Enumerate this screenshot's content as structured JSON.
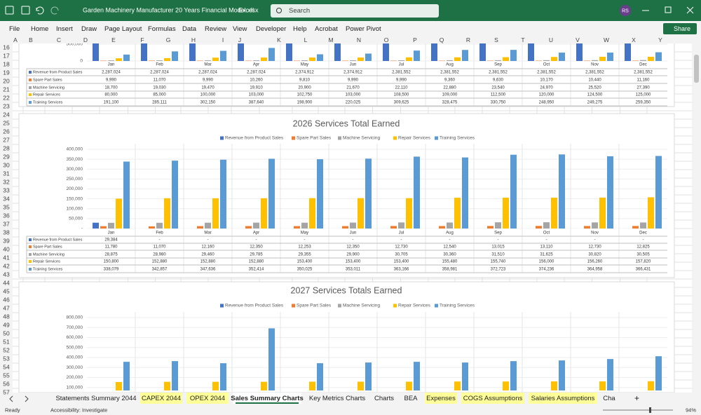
{
  "window": {
    "file_name": "Garden Machinery Manufacturer 20 Years Financial Model.xlsx",
    "app_name": "Excel",
    "search": "Search",
    "user_initials": "RS"
  },
  "ribbon_tabs": [
    "File",
    "Home",
    "Insert",
    "Draw",
    "Page Layout",
    "Formulas",
    "Data",
    "Review",
    "View",
    "Developer",
    "Help",
    "Acrobat",
    "Power Pivot"
  ],
  "share": "Share",
  "columns": [
    "A",
    "B",
    "C",
    "D",
    "E",
    "F",
    "G",
    "H",
    "I",
    "J",
    "K",
    "L",
    "M",
    "N",
    "O",
    "P",
    "Q",
    "R",
    "S",
    "T",
    "U",
    "V",
    "W",
    "X",
    "Y"
  ],
  "rows": [
    16,
    17,
    18,
    19,
    20,
    21,
    22,
    23,
    24,
    25,
    26,
    27,
    28,
    29,
    30,
    31,
    32,
    33,
    34,
    35,
    36,
    37,
    38,
    39,
    40,
    41,
    42,
    43,
    44,
    45,
    46,
    47,
    48,
    49,
    50,
    51,
    52,
    53,
    54,
    55,
    56,
    57
  ],
  "sheet_tabs": [
    {
      "label": "Statements Summary 2044",
      "highlight": false,
      "active": false
    },
    {
      "label": "CAPEX 2044",
      "highlight": true,
      "active": false
    },
    {
      "label": "OPEX 2044",
      "highlight": true,
      "active": false
    },
    {
      "label": "Sales Summary Charts",
      "highlight": false,
      "active": true
    },
    {
      "label": "Key Metrics Charts",
      "highlight": false,
      "active": false
    },
    {
      "label": "Charts",
      "highlight": false,
      "active": false
    },
    {
      "label": "BEA",
      "highlight": false,
      "active": false
    },
    {
      "label": "Expenses",
      "highlight": true,
      "active": false
    },
    {
      "label": "COGS Assumptions",
      "highlight": true,
      "active": false
    },
    {
      "label": "Salaries Assumptions",
      "highlight": true,
      "active": false
    },
    {
      "label": "Cha",
      "highlight": false,
      "active": false
    }
  ],
  "status": {
    "ready": "Ready",
    "accessibility": "Accessibility: Investigate",
    "zoom": "94%"
  },
  "chart_data": [
    {
      "type": "bar",
      "categories": [
        "Jan",
        "Feb",
        "Mar",
        "Apr",
        "May",
        "Jun",
        "Jul",
        "Aug",
        "Sep",
        "Oct",
        "Nov",
        "Dec"
      ],
      "ylim": [
        0,
        500000
      ],
      "yticks": [
        0,
        {
          "value": 500000,
          "label": "500,000"
        }
      ],
      "series": [
        {
          "name": "Revenue from Product Sales",
          "color": "#4472c4",
          "values": [
            2287024,
            2287024,
            2287024,
            2287024,
            2374912,
            2374912,
            2381552,
            2381552,
            2381552,
            2381552,
            2381552,
            2381552
          ],
          "value_labels": [
            "2,287,024",
            "2,287,024",
            "2,287,024",
            "2,287,024",
            "2,374,912",
            "2,374,912",
            "2,381,552",
            "2,381,552",
            "2,381,552",
            "2,381,552",
            "2,381,552",
            "2,381,552"
          ]
        },
        {
          "name": "Spare Part Sales",
          "color": "#ed7d31",
          "values": [
            9990,
            11070,
            9990,
            10260,
            9810,
            9990,
            9990,
            9360,
            9630,
            10170,
            10440,
            11160
          ],
          "value_labels": [
            "9,990",
            "11,070",
            "9,990",
            "10,260",
            "9,810",
            "9,990",
            "9,990",
            "9,360",
            "9,630",
            "10,170",
            "10,440",
            "11,160"
          ]
        },
        {
          "name": "Machine Servicing",
          "color": "#a5a5a5",
          "values": [
            18700,
            19030,
            19470,
            19910,
            20900,
            21670,
            22110,
            22880,
            23540,
            24970,
            25520,
            27390
          ],
          "value_labels": [
            "18,700",
            "19,030",
            "19,470",
            "19,910",
            "20,900",
            "21,670",
            "22,110",
            "22,880",
            "23,540",
            "24,970",
            "25,520",
            "27,390"
          ]
        },
        {
          "name": "Repair Services",
          "color": "#ffc000",
          "values": [
            80000,
            85000,
            100000,
            103000,
            102750,
            103000,
            108500,
            109000,
            112500,
            120000,
            124500,
            125000
          ],
          "value_labels": [
            "80,000",
            "85,000",
            "100,000",
            "103,000",
            "102,750",
            "103,000",
            "108,500",
            "109,000",
            "112,500",
            "120,000",
            "124,500",
            "125,000"
          ]
        },
        {
          "name": "Training Services",
          "color": "#5b9bd5",
          "values": [
            191100,
            285111,
            302150,
            387640,
            198900,
            220025,
            309625,
            328475,
            330750,
            248950,
            249275,
            259350
          ],
          "value_labels": [
            "191,100",
            "285,111",
            "302,150",
            "387,640",
            "198,900",
            "220,025",
            "309,625",
            "328,475",
            "330,750",
            "248,950",
            "249,275",
            "259,350"
          ]
        }
      ]
    },
    {
      "type": "bar",
      "title": "2026 Services Total Earned",
      "categories": [
        "Jan",
        "Feb",
        "Mar",
        "Apr",
        "May",
        "Jun",
        "Jul",
        "Aug",
        "Sep",
        "Oct",
        "Nov",
        "Dec"
      ],
      "ylim": [
        0,
        400000
      ],
      "yticks": [
        {
          "value": 0,
          "label": "-"
        },
        {
          "value": 50000,
          "label": "50,000"
        },
        {
          "value": 100000,
          "label": "100,000"
        },
        {
          "value": 150000,
          "label": "150,000"
        },
        {
          "value": 200000,
          "label": "200,000"
        },
        {
          "value": 250000,
          "label": "250,000"
        },
        {
          "value": 300000,
          "label": "300,000"
        },
        {
          "value": 350000,
          "label": "350,000"
        },
        {
          "value": 400000,
          "label": "400,000"
        }
      ],
      "series": [
        {
          "name": "Revenue from Product Sales",
          "color": "#4472c4",
          "values": [
            29384,
            0,
            0,
            0,
            0,
            0,
            0,
            0,
            0,
            0,
            0,
            0
          ],
          "value_labels": [
            "29,384",
            "-",
            "-",
            "-",
            "-",
            "-",
            "-",
            "-",
            "-",
            "-",
            "-",
            "-"
          ]
        },
        {
          "name": "Spare Part Sales",
          "color": "#ed7d31",
          "values": [
            11780,
            11070,
            12160,
            12350,
            12253,
            12350,
            12730,
            12540,
            13015,
            13110,
            12730,
            12825
          ],
          "value_labels": [
            "11,780",
            "11,070",
            "12,160",
            "12,350",
            "12,253",
            "12,350",
            "12,730",
            "12,540",
            "13,015",
            "13,110",
            "12,730",
            "12,825"
          ]
        },
        {
          "name": "Machine Servicing",
          "color": "#a5a5a5",
          "values": [
            28875,
            28980,
            29460,
            29785,
            29355,
            29900,
            30705,
            30360,
            31510,
            31625,
            30820,
            30505
          ],
          "value_labels": [
            "28,875",
            "28,980",
            "29,460",
            "29,785",
            "29,355",
            "29,900",
            "30,705",
            "30,360",
            "31,510",
            "31,625",
            "30,820",
            "30,505"
          ]
        },
        {
          "name": "Repair Services",
          "color": "#ffc000",
          "values": [
            150800,
            152880,
            152880,
            152880,
            153400,
            153400,
            153400,
            155480,
            155740,
            156000,
            156260,
            157820
          ],
          "value_labels": [
            "150,800",
            "152,880",
            "152,880",
            "152,880",
            "153,400",
            "153,400",
            "153,400",
            "155,480",
            "155,740",
            "156,000",
            "156,260",
            "157,820"
          ]
        },
        {
          "name": "Training Services",
          "color": "#5b9bd5",
          "values": [
            338079,
            342857,
            347636,
            352414,
            350025,
            353011,
            363166,
            358981,
            372723,
            374236,
            364958,
            366431
          ],
          "value_labels": [
            "338,079",
            "342,857",
            "347,636",
            "352,414",
            "350,025",
            "353,011",
            "363,166",
            "358,981",
            "372,723",
            "374,236",
            "364,958",
            "366,431"
          ]
        }
      ]
    },
    {
      "type": "bar",
      "title": "2027 Services Totals Earned",
      "categories": [
        "Jan",
        "Feb",
        "Mar",
        "Apr",
        "May",
        "Jun",
        "Jul",
        "Aug",
        "Sep",
        "Oct",
        "Nov",
        "Dec"
      ],
      "ylim": [
        0,
        800000
      ],
      "yticks": [
        {
          "value": 100000,
          "label": "100,000"
        },
        {
          "value": 200000,
          "label": "200,000"
        },
        {
          "value": 300000,
          "label": "300,000"
        },
        {
          "value": 400000,
          "label": "400,000"
        },
        {
          "value": 500000,
          "label": "500,000"
        },
        {
          "value": 600000,
          "label": "600,000"
        },
        {
          "value": 700000,
          "label": "700,000"
        },
        {
          "value": 800000,
          "label": "800,000"
        }
      ],
      "series": [
        {
          "name": "Revenue from Product Sales",
          "color": "#4472c4",
          "values": [
            null,
            null,
            null,
            null,
            null,
            null,
            null,
            null,
            null,
            null,
            null,
            null
          ]
        },
        {
          "name": "Spare Part Sales",
          "color": "#ed7d31",
          "values": [
            null,
            null,
            null,
            null,
            null,
            null,
            null,
            null,
            null,
            null,
            null,
            null
          ]
        },
        {
          "name": "Machine Servicing",
          "color": "#a5a5a5",
          "values": [
            null,
            null,
            null,
            null,
            null,
            null,
            null,
            null,
            null,
            null,
            null,
            null
          ]
        },
        {
          "name": "Repair Services",
          "color": "#ffc000",
          "values": [
            155000,
            157000,
            157000,
            157000,
            158000,
            158000,
            158000,
            160000,
            160000,
            161000,
            161000,
            163000
          ]
        },
        {
          "name": "Training Services",
          "color": "#5b9bd5",
          "values": [
            357000,
            364000,
            343000,
            692000,
            343000,
            350000,
            357000,
            350000,
            364000,
            371000,
            385000,
            413000
          ]
        }
      ]
    }
  ]
}
